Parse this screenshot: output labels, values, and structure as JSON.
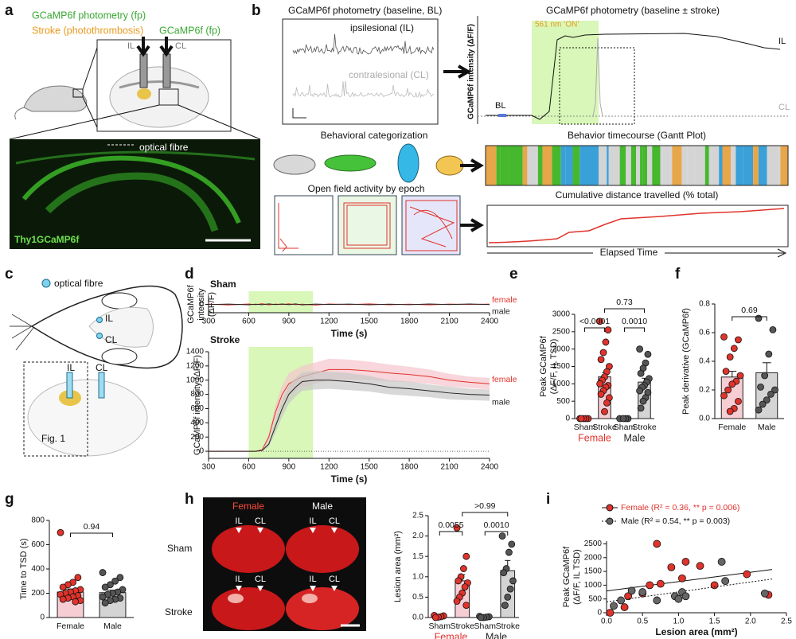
{
  "a": {
    "label": "a",
    "fp_left": "GCaMP6f photometry (fp)",
    "stroke": "Stroke (photothrombosis)",
    "fp_right": "GCaMP6f (fp)",
    "il": "IL",
    "cl": "CL",
    "fibre": "optical fibre",
    "line": "Thy1GCaMP6f"
  },
  "b": {
    "label": "b",
    "bl_title": "GCaMP6f photometry (baseline, BL)",
    "il_trace": "ipsilesional (IL)",
    "cl_trace": "contralesional (CL)",
    "stroke_title": "GCaMP6f photometry (baseline ± stroke)",
    "laser": "561 nm ‘ON’",
    "ylabel": "GCaMP6f intensity (ΔF/F)",
    "il": "IL",
    "cl": "CL",
    "bl": "BL",
    "behavior_title": "Behavioral categorization",
    "gantt_title": "Behavior timecourse (Gantt Plot)",
    "openfield_title": "Open field activity by epoch",
    "distance_title": "Cumulative distance travelled (% total)",
    "xlabel": "Elapsed Time"
  },
  "c": {
    "label": "c",
    "fibre": "optical fibre",
    "il_top": "IL",
    "cl_top": "CL",
    "il_bottom": "IL",
    "cl_bottom": "CL",
    "fig": "Fig. 1"
  },
  "d": {
    "label": "d",
    "sham": {
      "type": "line",
      "title": "Sham",
      "ylabel": [
        "GCaMP6f",
        "intensity",
        "(ΔF/F)"
      ],
      "xlabel": "Time (s)",
      "xlim": [
        300,
        2400
      ],
      "xticks": [
        300,
        600,
        900,
        1200,
        1500,
        1800,
        2100,
        2400
      ],
      "ylim": [
        -150,
        150
      ],
      "yticks": [
        0
      ],
      "stim": [
        600,
        1080
      ],
      "x": [
        300,
        450,
        600,
        650,
        700,
        750,
        800,
        850,
        900,
        950,
        1000,
        1100,
        1200,
        1350,
        1500,
        1650,
        1800,
        1950,
        2100,
        2250,
        2400
      ],
      "series": [
        {
          "name": "female",
          "color": "#e0332b",
          "values": [
            5,
            -10,
            8,
            -5,
            12,
            -8,
            6,
            -4,
            10,
            -6,
            3,
            -12,
            7,
            -3,
            9,
            -7,
            4,
            -9,
            6,
            -2,
            5
          ]
        },
        {
          "name": "male",
          "color": "#222222",
          "values": [
            -4,
            6,
            -8,
            4,
            -6,
            9,
            -3,
            7,
            -5,
            8,
            -9,
            5,
            -2,
            6,
            -7,
            3,
            -5,
            7,
            -4,
            8,
            -3
          ]
        }
      ]
    },
    "stroke": {
      "type": "line",
      "title": "Stroke",
      "ylabel": [
        "GCaMP6f intensity (ΔF/F)"
      ],
      "xlabel": "Time (s)",
      "xlim": [
        300,
        2400
      ],
      "xticks": [
        300,
        600,
        900,
        1200,
        1500,
        1800,
        2100,
        2400
      ],
      "ylim": [
        -100,
        1400
      ],
      "yticks": [
        0,
        200,
        400,
        600,
        800,
        1000,
        1200,
        1400
      ],
      "stim": [
        600,
        1080
      ],
      "x": [
        300,
        450,
        600,
        650,
        700,
        750,
        800,
        850,
        900,
        950,
        1000,
        1100,
        1200,
        1350,
        1500,
        1650,
        1800,
        1950,
        2100,
        2250,
        2400
      ],
      "series": [
        {
          "name": "female",
          "color": "#e0332b",
          "band": "#f5c4cc",
          "values": [
            0,
            0,
            0,
            0,
            20,
            200,
            550,
            800,
            950,
            1000,
            1050,
            1100,
            1150,
            1150,
            1130,
            1100,
            1080,
            1050,
            1000,
            970,
            950
          ],
          "errors": [
            0,
            0,
            0,
            0,
            10,
            50,
            100,
            130,
            150,
            150,
            150,
            150,
            150,
            140,
            130,
            120,
            110,
            100,
            90,
            80,
            80
          ]
        },
        {
          "name": "male",
          "color": "#222222",
          "band": "#c8c8c8",
          "values": [
            0,
            0,
            0,
            0,
            10,
            100,
            350,
            600,
            800,
            900,
            980,
            1000,
            1000,
            980,
            950,
            900,
            880,
            850,
            820,
            800,
            790
          ],
          "errors": [
            0,
            0,
            0,
            0,
            10,
            40,
            90,
            120,
            130,
            130,
            130,
            130,
            120,
            120,
            110,
            100,
            100,
            90,
            90,
            80,
            80
          ]
        }
      ]
    }
  },
  "e": {
    "label": "e",
    "type": "bar",
    "ylabel": [
      "Peak GCaMP6f",
      "(ΔF/F, IL TSD)"
    ],
    "ylim": [
      0,
      3000
    ],
    "yticks": [
      0,
      500,
      1000,
      1500,
      2000,
      2500,
      3000
    ],
    "categories": [
      "Sham",
      "Stroke",
      "Sham",
      "Stroke"
    ],
    "groups": [
      "Female",
      "Male"
    ],
    "group_colors": [
      "#e0332b",
      "#222222"
    ],
    "colors": [
      "#f6cdd3",
      "#f6cdd3",
      "#d4d4d4",
      "#d4d4d4"
    ],
    "dot_colors": [
      "#e0332b",
      "#e0332b",
      "#555555",
      "#555555"
    ],
    "values": [
      0,
      1200,
      0,
      1050
    ],
    "errors": [
      0,
      120,
      0,
      110
    ],
    "points": [
      [
        0,
        0,
        0,
        0,
        0
      ],
      [
        2800,
        2550,
        2200,
        1900,
        1700,
        1500,
        1350,
        1200,
        1100,
        1000,
        950,
        900,
        800,
        700,
        600,
        450,
        200
      ],
      [
        0,
        0,
        0,
        0
      ],
      [
        2000,
        1850,
        1600,
        1450,
        1300,
        1150,
        1050,
        950,
        900,
        800,
        750,
        600,
        500,
        300
      ]
    ],
    "comparisons": [
      "<0.0001",
      "0.0010",
      "0.73"
    ]
  },
  "f": {
    "label": "f",
    "type": "bar",
    "ylabel": [
      "Peak derivative (GCaMP6f)"
    ],
    "ylim": [
      0,
      0.8
    ],
    "yticks": [
      {
        "value": 0,
        "label": "0.0"
      },
      {
        "value": 0.2,
        "label": "0.2"
      },
      {
        "value": 0.4,
        "label": "0.4"
      },
      {
        "value": 0.6,
        "label": "0.6"
      },
      {
        "value": 0.8,
        "label": "0.8"
      }
    ],
    "categories": [
      "Female",
      "Male"
    ],
    "colors": [
      "#f6cdd3",
      "#d4d4d4"
    ],
    "dot_colors": [
      "#e0332b",
      "#555555"
    ],
    "values": [
      0.29,
      0.32
    ],
    "errors": [
      0.04,
      0.07
    ],
    "points": [
      [
        0.57,
        0.55,
        0.49,
        0.43,
        0.33,
        0.3,
        0.26,
        0.24,
        0.2,
        0.16,
        0.12,
        0.07,
        0.05
      ],
      [
        0.7,
        0.62,
        0.45,
        0.3,
        0.22,
        0.2,
        0.17,
        0.13,
        0.1,
        0.06
      ]
    ],
    "comparisons": [
      "0.69"
    ]
  },
  "g": {
    "label": "g",
    "type": "bar",
    "ylabel": [
      "Time to TSD (s)"
    ],
    "ylim": [
      0,
      800
    ],
    "yticks": [
      0,
      200,
      400,
      600,
      800
    ],
    "categories": [
      "Female",
      "Male"
    ],
    "colors": [
      "#f6cdd3",
      "#d4d4d4"
    ],
    "dot_colors": [
      "#e0332b",
      "#555555"
    ],
    "values": [
      210,
      205
    ],
    "errors": [
      25,
      20
    ],
    "points": [
      [
        700,
        330,
        290,
        270,
        250,
        230,
        220,
        210,
        200,
        190,
        180,
        170,
        160,
        150,
        140,
        130
      ],
      [
        370,
        330,
        300,
        270,
        250,
        230,
        210,
        200,
        190,
        170,
        160,
        150,
        140,
        120
      ]
    ],
    "comparisons": [
      "0.94"
    ]
  },
  "h": {
    "label": "h",
    "columns": [
      "Female",
      "Male"
    ],
    "rows": [
      "Sham",
      "Stroke"
    ],
    "arrows": [
      "IL",
      "CL",
      "IL",
      "CL",
      "IL",
      "CL",
      "IL",
      "CL"
    ],
    "chart": {
      "type": "bar",
      "ylabel": [
        "Lesion area (mm²)"
      ],
      "ylim": [
        0,
        2.5
      ],
      "yticks": [
        {
          "value": 0,
          "label": "0.0"
        },
        {
          "value": 0.5,
          "label": "0.5"
        },
        {
          "value": 1,
          "label": "1.0"
        },
        {
          "value": 1.5,
          "label": "1.5"
        },
        {
          "value": 2,
          "label": "2.0"
        },
        {
          "value": 2.5,
          "label": "2.5"
        }
      ],
      "categories": [
        "Sham",
        "Stroke",
        "Sham",
        "Stroke"
      ],
      "groups": [
        "Female",
        "Male"
      ],
      "group_colors": [
        "#e0332b",
        "#222222"
      ],
      "colors": [
        "#f6cdd3",
        "#f6cdd3",
        "#d4d4d4",
        "#d4d4d4"
      ],
      "dot_colors": [
        "#e0332b",
        "#e0332b",
        "#555555",
        "#555555"
      ],
      "values": [
        0.03,
        0.9,
        0.02,
        1.15
      ],
      "errors": [
        0.01,
        0.15,
        0.01,
        0.25
      ],
      "points": [
        [
          0.05,
          0.04,
          0.02,
          0.01,
          0
        ],
        [
          2.2,
          1.5,
          1.2,
          1,
          0.9,
          0.85,
          0.75,
          0.6,
          0.5,
          0.4,
          0.3
        ],
        [
          0.03,
          0.02,
          0.01,
          0,
          0
        ],
        [
          2,
          1.8,
          1.6,
          1.2,
          1.1,
          0.9,
          0.7,
          0.5,
          0.3
        ]
      ],
      "comparisons": [
        "0.0055",
        "0.0010",
        ">0.99"
      ]
    }
  },
  "i": {
    "label": "i",
    "type": "scatter",
    "ylabel": [
      "Peak GCaMP6f",
      "(ΔF/F, IL TSD)"
    ],
    "xlabel": "Lesion area (mm²)",
    "xlim": [
      0,
      2.5
    ],
    "xticks": [
      {
        "value": 0,
        "label": "0.0"
      },
      {
        "value": 0.5,
        "label": "0.5"
      },
      {
        "value": 1,
        "label": "1.0"
      },
      {
        "value": 1.5,
        "label": "1.5"
      },
      {
        "value": 2,
        "label": "2.0"
      },
      {
        "value": 2.5,
        "label": "2.5"
      }
    ],
    "ylim": [
      0,
      2600
    ],
    "yticks": [
      0,
      500,
      1000,
      1500,
      2000,
      2500
    ],
    "series": [
      {
        "name": "Female (R² = 0.36, ** p = 0.006)",
        "color": "#e0332b",
        "dash": "none",
        "x": [
          0.05,
          0.25,
          0.3,
          0.5,
          0.6,
          0.7,
          0.75,
          0.9,
          1.05,
          1.1,
          1.3,
          1.5,
          1.95,
          2.25
        ],
        "values": [
          0,
          200,
          600,
          700,
          1000,
          2500,
          1050,
          1650,
          1250,
          1850,
          1700,
          1000,
          1400,
          650
        ]
      },
      {
        "name": "Male (R² = 0.54, ** p = 0.003)",
        "color": "#666666",
        "dash": "2 2",
        "x": [
          0.1,
          0.2,
          0.35,
          0.5,
          0.7,
          0.95,
          1,
          1.05,
          1.1,
          1.6,
          1.65,
          2.2
        ],
        "values": [
          250,
          450,
          800,
          750,
          450,
          600,
          500,
          750,
          600,
          1850,
          1150,
          700
        ]
      }
    ]
  }
}
